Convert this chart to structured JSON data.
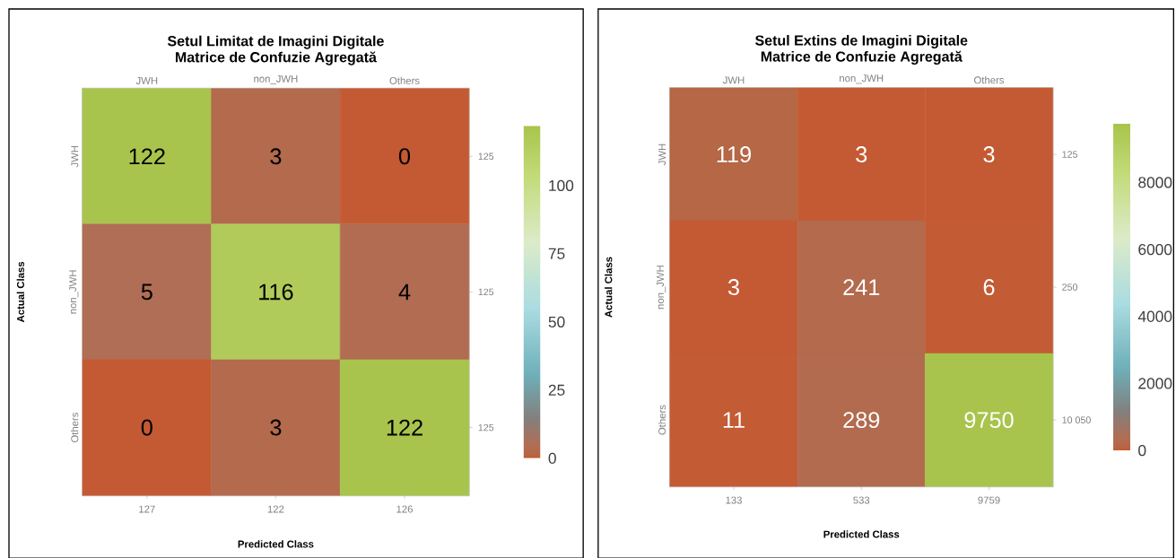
{
  "chart_data": [
    {
      "type": "heatmap",
      "title": "Setul Limitat de Imagini Digitale",
      "subtitle": "Matrice de Confuzie Agregată",
      "xlabel": "Predicted Class",
      "ylabel": "Actual Class",
      "categories": [
        "JWH",
        "non_JWH",
        "Others"
      ],
      "y_categories": [
        "JWH",
        "non_JWH",
        "Others"
      ],
      "y2_categories": [
        "125",
        "125",
        "125"
      ],
      "cells": [
        [
          122,
          3,
          0
        ],
        [
          5,
          116,
          4
        ],
        [
          0,
          3,
          122
        ]
      ],
      "data_labels": true,
      "clim": [
        0,
        122
      ],
      "cticks": [
        0,
        25,
        50,
        75,
        100
      ],
      "annotations": [
        "127",
        "122",
        "126"
      ]
    },
    {
      "type": "heatmap",
      "title": "Setul Extins de Imagini Digitale",
      "subtitle": "Matrice de Confuzie Agregată",
      "xlabel": "Predicted Class",
      "ylabel": "Actual Class",
      "categories": [
        "JWH",
        "non_JWH",
        "Others"
      ],
      "y_categories": [
        "JWH",
        "non_JWH",
        "Others"
      ],
      "y2_categories": [
        "125",
        "250",
        "10 050"
      ],
      "cells": [
        [
          119,
          3,
          3
        ],
        [
          3,
          241,
          6
        ],
        [
          11,
          289,
          9750
        ]
      ],
      "data_labels": true,
      "clim": [
        0,
        9750
      ],
      "cticks": [
        0,
        2000,
        4000,
        6000,
        8000
      ],
      "annotations": [
        "133",
        "533",
        "9759"
      ]
    }
  ]
}
